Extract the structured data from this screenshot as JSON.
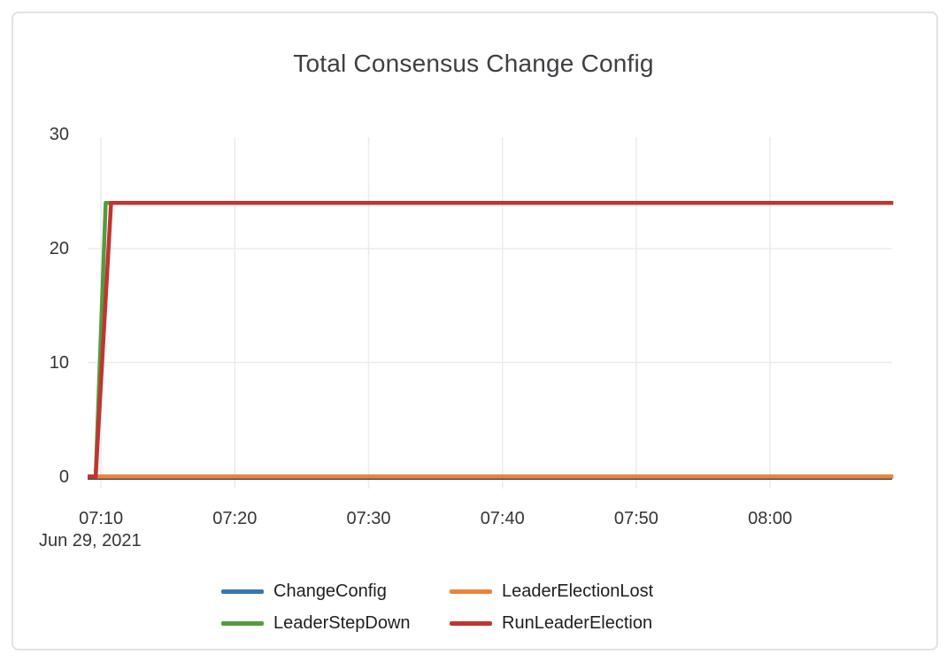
{
  "card": {
    "type": "chart-panel"
  },
  "chart_data": {
    "type": "line",
    "title": "Total Consensus Change Config",
    "x_axis": {
      "date_label": "Jun 29, 2021",
      "start_time": "07:09",
      "range_min": [
        0,
        60.2
      ],
      "ticks": [
        {
          "label": "07:10",
          "min": 1
        },
        {
          "label": "07:20",
          "min": 11
        },
        {
          "label": "07:30",
          "min": 21
        },
        {
          "label": "07:40",
          "min": 31
        },
        {
          "label": "07:50",
          "min": 41
        },
        {
          "label": "08:00",
          "min": 51
        }
      ]
    },
    "y_axis": {
      "range": [
        0,
        30
      ],
      "ticks": [
        {
          "label": "0",
          "value": 0
        },
        {
          "label": "10",
          "value": 10
        },
        {
          "label": "20",
          "value": 20
        },
        {
          "label": "30",
          "value": 30
        }
      ],
      "grid_values": [
        10,
        20
      ]
    },
    "series": [
      {
        "name": "ChangeConfig",
        "color": "#3a74b2",
        "points": [
          [
            0,
            0
          ],
          [
            60.2,
            0
          ]
        ]
      },
      {
        "name": "LeaderElectionLost",
        "color": "#ee8435",
        "points": [
          [
            0,
            0
          ],
          [
            60.2,
            0
          ]
        ]
      },
      {
        "name": "LeaderStepDown",
        "color": "#539c3e",
        "points": [
          [
            0,
            0
          ],
          [
            0.6,
            0
          ],
          [
            1.35,
            24
          ],
          [
            60.2,
            24
          ]
        ]
      },
      {
        "name": "RunLeaderElection",
        "color": "#c23431",
        "points": [
          [
            0,
            0
          ],
          [
            0.6,
            0
          ],
          [
            1.75,
            24
          ],
          [
            60.2,
            24
          ]
        ]
      }
    ],
    "grid": true,
    "legend_position": "bottom"
  },
  "colors": {
    "card_border": "#e2e2e2",
    "gridline": "#ebebeb",
    "axis_line": "#333333",
    "title_text": "#3d4043",
    "tick_text": "#333538",
    "legend_text": "#1d1f21"
  }
}
